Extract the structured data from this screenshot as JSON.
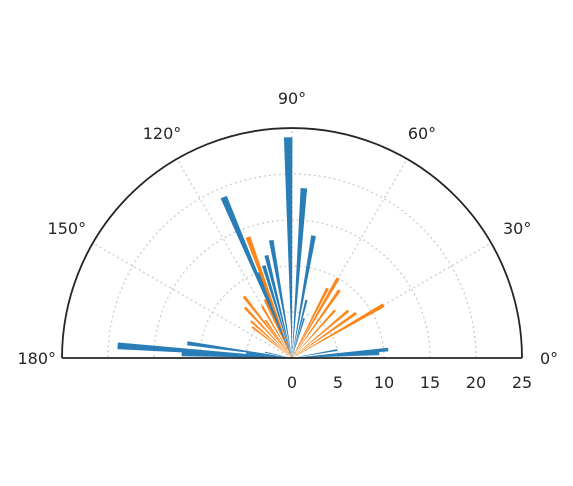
{
  "chart_data": {
    "type": "polar-bar",
    "angle_unit": "degrees",
    "theta_range": [
      0,
      180
    ],
    "r_range": [
      0,
      25
    ],
    "grid": true,
    "angle_ticks": [
      0,
      30,
      60,
      90,
      120,
      150,
      180
    ],
    "angle_tick_labels": [
      "0°",
      "30°",
      "60°",
      "90°",
      "120°",
      "150°",
      "180°"
    ],
    "radial_ticks": [
      0,
      5,
      10,
      15,
      20,
      25
    ],
    "radial_tick_labels": [
      "0",
      "5",
      "10",
      "15",
      "20",
      "25"
    ],
    "series": [
      {
        "color": "#1f77b4",
        "bars": [
          {
            "angle": 5,
            "r": 10.5
          },
          {
            "angle": 3,
            "r": 9.5
          },
          {
            "angle": 10,
            "r": 5
          },
          {
            "angle": 73,
            "r": 4.5
          },
          {
            "angle": 76,
            "r": 6.5
          },
          {
            "angle": 80,
            "r": 13.5
          },
          {
            "angle": 86,
            "r": 18.5
          },
          {
            "angle": 91,
            "r": 24
          },
          {
            "angle": 100,
            "r": 13
          },
          {
            "angle": 104,
            "r": 11.5
          },
          {
            "angle": 107,
            "r": 10.5
          },
          {
            "angle": 111,
            "r": 10
          },
          {
            "angle": 113,
            "r": 19
          },
          {
            "angle": 168,
            "r": 3
          },
          {
            "angle": 172,
            "r": 11.5
          },
          {
            "angle": 174,
            "r": 5
          },
          {
            "angle": 176,
            "r": 19
          },
          {
            "angle": 178,
            "r": 12
          }
        ]
      },
      {
        "color": "#ff7f0e",
        "bars": [
          {
            "angle": 30,
            "r": 11.5
          },
          {
            "angle": 35,
            "r": 8.5
          },
          {
            "angle": 40,
            "r": 8
          },
          {
            "angle": 48,
            "r": 7
          },
          {
            "angle": 55,
            "r": 9
          },
          {
            "angle": 60,
            "r": 10
          },
          {
            "angle": 63,
            "r": 8.5
          },
          {
            "angle": 110,
            "r": 14
          },
          {
            "angle": 115,
            "r": 7
          },
          {
            "angle": 120,
            "r": 6.5
          },
          {
            "angle": 125,
            "r": 5
          },
          {
            "angle": 128,
            "r": 8.5
          },
          {
            "angle": 133,
            "r": 7.5
          },
          {
            "angle": 138,
            "r": 6
          },
          {
            "angle": 142,
            "r": 5.5
          }
        ]
      }
    ]
  }
}
